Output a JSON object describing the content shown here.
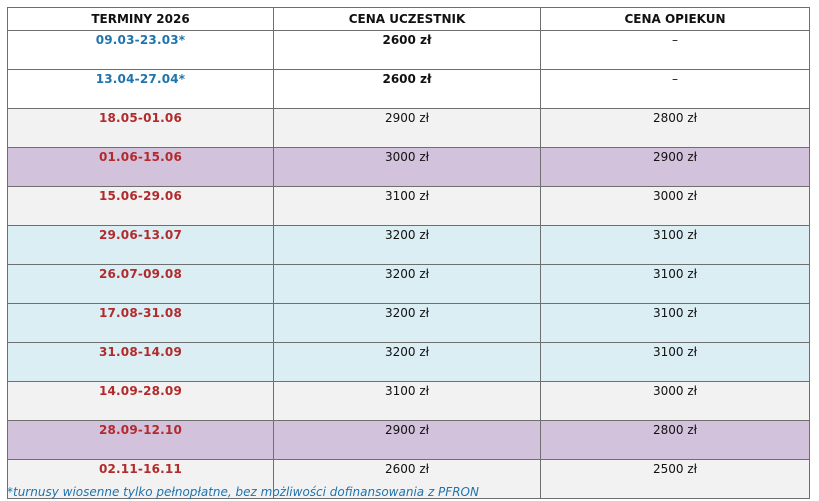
{
  "table": {
    "headers": [
      "TERMINY 2026",
      "CENA UCZESTNIK",
      "CENA OPIEKUN"
    ],
    "rows": [
      {
        "date": "09.03-23.03*",
        "participant": "2600 zł",
        "caregiver": "–",
        "date_color": "#1f74ad",
        "bg": "#ffffff",
        "bold_prices": true
      },
      {
        "date": "13.04-27.04*",
        "participant": "2600 zł",
        "caregiver": "–",
        "date_color": "#1f74ad",
        "bg": "#ffffff",
        "bold_prices": true
      },
      {
        "date": "18.05-01.06",
        "participant": "2900 zł",
        "caregiver": "2800 zł",
        "date_color": "#b12a2c",
        "bg": "#f2f2f2",
        "bold_prices": false
      },
      {
        "date": "01.06-15.06",
        "participant": "3000 zł",
        "caregiver": "2900 zł",
        "date_color": "#b12a2c",
        "bg": "#d2c2dc",
        "bold_prices": false
      },
      {
        "date": "15.06-29.06",
        "participant": "3100 zł",
        "caregiver": "3000 zł",
        "date_color": "#b12a2c",
        "bg": "#f2f2f2",
        "bold_prices": false
      },
      {
        "date": "29.06-13.07",
        "participant": "3200 zł",
        "caregiver": "3100 zł",
        "date_color": "#b12a2c",
        "bg": "#dbeef4",
        "bold_prices": false
      },
      {
        "date": "26.07-09.08",
        "participant": "3200 zł",
        "caregiver": "3100 zł",
        "date_color": "#b12a2c",
        "bg": "#dbeef4",
        "bold_prices": false
      },
      {
        "date": "17.08-31.08",
        "participant": "3200 zł",
        "caregiver": "3100 zł",
        "date_color": "#b12a2c",
        "bg": "#dbeef4",
        "bold_prices": false
      },
      {
        "date": "31.08-14.09",
        "participant": "3200 zł",
        "caregiver": "3100 zł",
        "date_color": "#b12a2c",
        "bg": "#dbeef4",
        "bold_prices": false
      },
      {
        "date": "14.09-28.09",
        "participant": "3100 zł",
        "caregiver": "3000 zł",
        "date_color": "#b12a2c",
        "bg": "#f2f2f2",
        "bold_prices": false
      },
      {
        "date": "28.09-12.10",
        "participant": "2900 zł",
        "caregiver": "2800 zł",
        "date_color": "#b12a2c",
        "bg": "#d2c2dc",
        "bold_prices": false
      },
      {
        "date": "02.11-16.11",
        "participant": "2600 zł",
        "caregiver": "2500 zł",
        "date_color": "#b12a2c",
        "bg": "#f2f2f2",
        "bold_prices": false
      }
    ]
  },
  "footnote": {
    "text": "*turnusy wiosenne tylko pełnopłatne, bez możliwości dofinansowania z PFRON",
    "color": "#1f74ad"
  }
}
